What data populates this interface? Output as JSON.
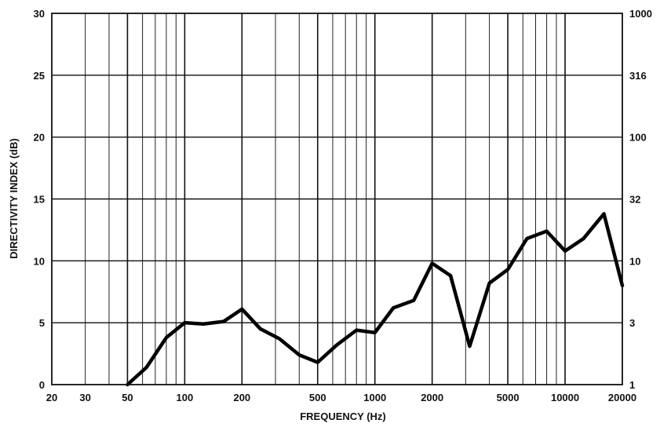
{
  "chart_data": {
    "type": "line",
    "title": "",
    "xlabel": "FREQUENCY (Hz)",
    "ylabel": "DIRECTIVITY INDEX (dB)",
    "x_scale": "log",
    "xlim": [
      20,
      20000
    ],
    "ylim": [
      0,
      30
    ],
    "grid": true,
    "x_ticks": [
      "20",
      "30",
      "50",
      "100",
      "200",
      "500",
      "1000",
      "2000",
      "5000",
      "10000",
      "20000"
    ],
    "y_ticks": [
      "0",
      "5",
      "10",
      "15",
      "20",
      "25",
      "30"
    ],
    "y2_ticks": [
      "1",
      "3",
      "10",
      "32",
      "100",
      "316",
      "1000"
    ],
    "series": [
      {
        "x": [
          50,
          63,
          80,
          100,
          125,
          160,
          200,
          250,
          315,
          400,
          500,
          630,
          800,
          1000,
          1250,
          1600,
          2000,
          2500,
          3150,
          4000,
          5000,
          6300,
          8000,
          10000,
          12500,
          16000,
          20000
        ],
        "y": [
          0,
          1.4,
          3.8,
          5.0,
          4.9,
          5.1,
          6.1,
          4.5,
          3.7,
          2.4,
          1.8,
          3.2,
          4.4,
          4.2,
          6.2,
          6.8,
          9.8,
          8.8,
          3.1,
          8.2,
          9.3,
          11.8,
          12.4,
          10.8,
          11.8,
          13.8,
          8.0
        ]
      }
    ]
  }
}
